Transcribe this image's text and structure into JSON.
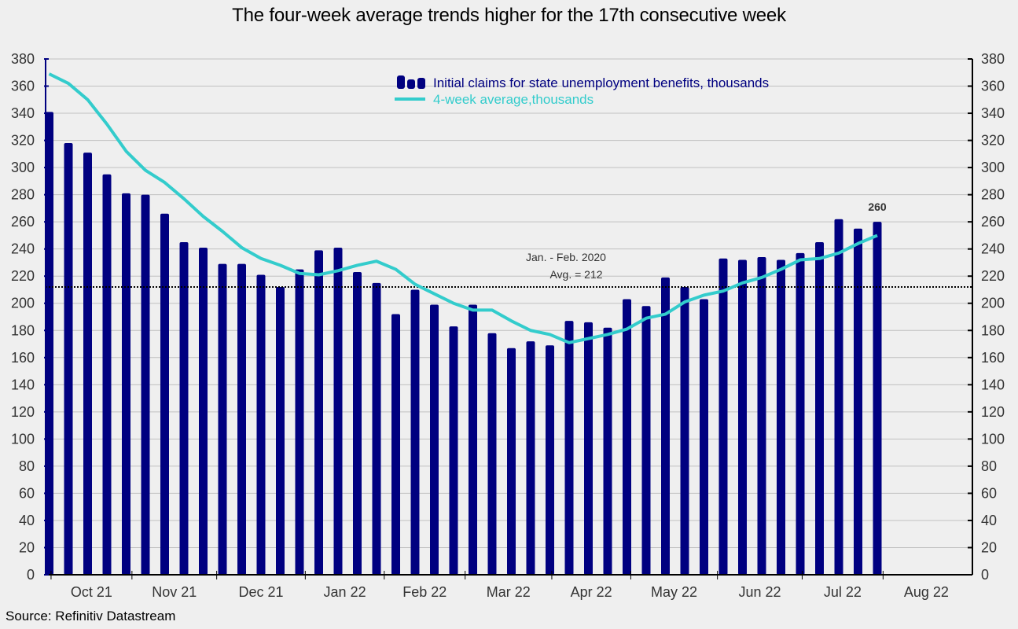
{
  "chart_data": {
    "type": "bar",
    "title": "The four-week average trends higher for the 17th consecutive week",
    "source": "Source: Refinitiv Datastream",
    "xlabel": "",
    "ylabel": "",
    "ylim": [
      0,
      380
    ],
    "y_ticks": [
      0,
      20,
      40,
      60,
      80,
      100,
      120,
      140,
      160,
      180,
      200,
      220,
      240,
      260,
      280,
      300,
      320,
      340,
      360,
      380
    ],
    "y_axis_sides": [
      "left",
      "right"
    ],
    "grid": true,
    "x_month_labels": [
      "Oct 21",
      "Nov 21",
      "Dec 21",
      "Jan 22",
      "Feb 22",
      "Mar 22",
      "Apr 22",
      "May 22",
      "Jun 22",
      "Jul 22",
      "Aug 22"
    ],
    "x_month_start_week_index": [
      0.1,
      4.3,
      8.7,
      13.3,
      17.4,
      21.6,
      26.1,
      30.2,
      34.7,
      39.1,
      43.3
    ],
    "x_total_weeks": 48,
    "legend": {
      "placement": "top-center",
      "entries": [
        {
          "label": "Initial claims for state unemployment benefits,  thousands",
          "kind": "bar",
          "color": "#000080"
        },
        {
          "label": "4-week average,thousands",
          "kind": "line",
          "color": "#33cccc"
        }
      ]
    },
    "series": [
      {
        "name": "Initial claims for state unemployment benefits,  thousands",
        "type": "bar",
        "color": "#000080",
        "values": [
          341,
          318,
          311,
          295,
          281,
          280,
          266,
          245,
          241,
          229,
          229,
          221,
          212,
          225,
          239,
          241,
          223,
          215,
          192,
          210,
          199,
          183,
          199,
          178,
          167,
          172,
          169,
          187,
          186,
          182,
          203,
          198,
          219,
          212,
          203,
          233,
          232,
          234,
          232,
          237,
          245,
          262,
          255,
          260
        ]
      },
      {
        "name": "4-week average,thousands",
        "type": "line",
        "color": "#33cccc",
        "values": [
          369,
          362,
          350,
          332,
          312,
          298,
          289,
          277,
          264,
          253,
          241,
          233,
          228,
          222,
          221,
          224,
          228,
          231,
          225,
          214,
          207,
          200,
          195,
          195,
          187,
          180,
          177,
          171,
          174,
          177,
          181,
          189,
          192,
          201,
          206,
          209,
          215,
          219,
          225,
          232,
          233,
          237,
          244,
          250
        ]
      }
    ],
    "reference_line": {
      "value": 212,
      "style": "dotted",
      "color": "#000000",
      "label_line1": "Jan. - Feb. 2020",
      "label_line2": "Avg. = 212"
    },
    "data_labels": [
      {
        "series": 0,
        "index": 43,
        "text": "260"
      }
    ]
  }
}
